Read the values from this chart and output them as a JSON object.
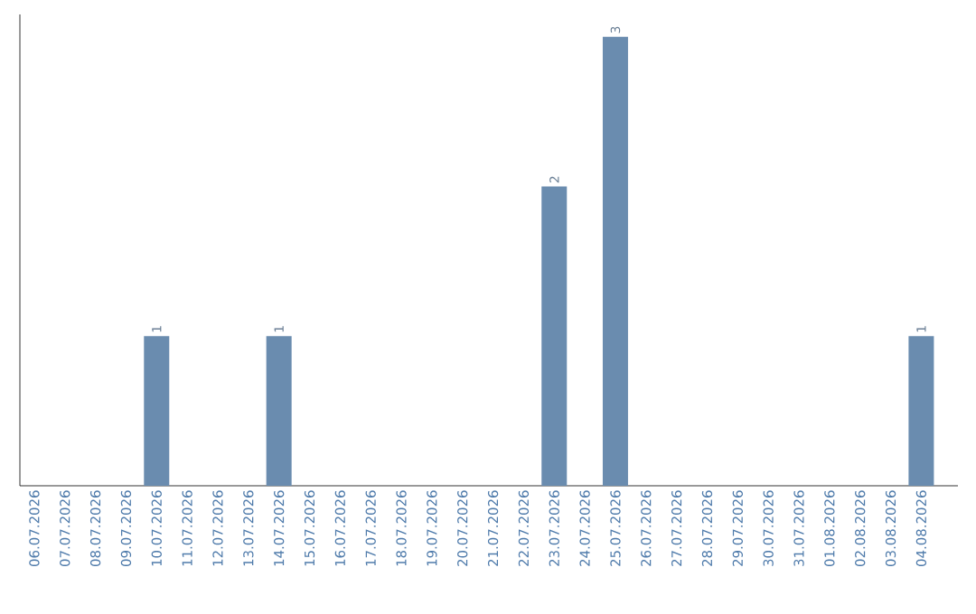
{
  "chart_data": {
    "type": "bar",
    "categories": [
      "06.07.2026",
      "07.07.2026",
      "08.07.2026",
      "09.07.2026",
      "10.07.2026",
      "11.07.2026",
      "12.07.2026",
      "13.07.2026",
      "14.07.2026",
      "15.07.2026",
      "16.07.2026",
      "17.07.2026",
      "18.07.2026",
      "19.07.2026",
      "20.07.2026",
      "21.07.2026",
      "22.07.2026",
      "23.07.2026",
      "24.07.2026",
      "25.07.2026",
      "26.07.2026",
      "27.07.2026",
      "28.07.2026",
      "29.07.2026",
      "30.07.2026",
      "31.07.2026",
      "01.08.2026",
      "02.08.2026",
      "03.08.2026",
      "04.08.2026"
    ],
    "values": [
      0,
      0,
      0,
      0,
      1,
      0,
      0,
      0,
      1,
      0,
      0,
      0,
      0,
      0,
      0,
      0,
      0,
      2,
      0,
      3,
      0,
      0,
      0,
      0,
      0,
      0,
      0,
      0,
      0,
      1
    ],
    "value_labels": [
      null,
      null,
      null,
      null,
      "1",
      null,
      null,
      null,
      "1",
      null,
      null,
      null,
      null,
      null,
      null,
      null,
      null,
      "2",
      null,
      "3",
      null,
      null,
      null,
      null,
      null,
      null,
      null,
      null,
      null,
      "1"
    ],
    "color": "#6a8caf",
    "tick_labels": "x"
  }
}
